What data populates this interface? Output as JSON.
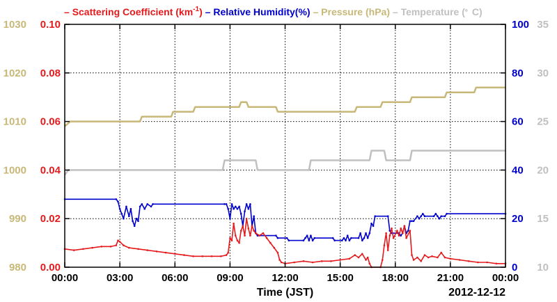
{
  "chart_data": {
    "type": "line",
    "legend": [
      {
        "key": "scattering",
        "label": "Scattering Coefficient (km",
        "sup": "-1",
        "suffix": ")",
        "color": "#e41a1c"
      },
      {
        "key": "humidity",
        "label": "Relative Humidity(%)",
        "color": "#0000cc"
      },
      {
        "key": "pressure",
        "label": "Pressure (hPa)",
        "color": "#c8b878"
      },
      {
        "key": "temperature",
        "label": "Temperature (",
        "sup": "。",
        "suffix": "C)",
        "color": "#c0c0c0"
      }
    ],
    "xlabel": "Time (JST)",
    "date": "2012-12-12",
    "x_ticks": [
      "00:00",
      "03:00",
      "06:00",
      "09:00",
      "12:00",
      "15:00",
      "18:00",
      "21:00",
      "00:00"
    ],
    "x_range_hours": [
      0,
      24
    ],
    "grid": true,
    "axes": {
      "pressure": {
        "side": "left-outer",
        "range": [
          980,
          1030
        ],
        "ticks": [
          "980",
          "990",
          "1000",
          "1010",
          "1020",
          "1030"
        ],
        "color": "#c8b878"
      },
      "scattering": {
        "side": "left-inner",
        "range": [
          0,
          0.1
        ],
        "ticks": [
          "0.00",
          "0.02",
          "0.04",
          "0.06",
          "0.08",
          "0.10"
        ],
        "color": "#e41a1c"
      },
      "humidity": {
        "side": "right-inner",
        "range": [
          0,
          100
        ],
        "ticks": [
          "0",
          "20",
          "40",
          "60",
          "80",
          "100"
        ],
        "color": "#0000cc"
      },
      "temperature": {
        "side": "right-outer",
        "range": [
          10,
          35
        ],
        "ticks": [
          "10",
          "15",
          "20",
          "25",
          "30",
          "35"
        ],
        "color": "#c0c0c0"
      }
    },
    "series": {
      "pressure": [
        [
          0,
          1009
        ],
        [
          0.3,
          1010
        ],
        [
          1.2,
          1010
        ],
        [
          4.1,
          1010
        ],
        [
          4.2,
          1011
        ],
        [
          5.8,
          1011
        ],
        [
          5.9,
          1012
        ],
        [
          7,
          1012
        ],
        [
          7.1,
          1013
        ],
        [
          9.5,
          1013
        ],
        [
          9.6,
          1014
        ],
        [
          9.9,
          1014
        ],
        [
          10,
          1013
        ],
        [
          11.5,
          1013
        ],
        [
          11.6,
          1012
        ],
        [
          15.8,
          1012
        ],
        [
          15.9,
          1013
        ],
        [
          17.2,
          1013
        ],
        [
          17.3,
          1014
        ],
        [
          18.8,
          1014
        ],
        [
          18.9,
          1015
        ],
        [
          20.7,
          1015
        ],
        [
          20.8,
          1016
        ],
        [
          22.3,
          1016
        ],
        [
          22.4,
          1017
        ],
        [
          24,
          1017
        ]
      ],
      "temperature": [
        [
          0,
          19.5
        ],
        [
          0.2,
          20
        ],
        [
          8.6,
          20
        ],
        [
          8.7,
          21
        ],
        [
          10.4,
          21
        ],
        [
          10.5,
          20
        ],
        [
          13.3,
          20
        ],
        [
          13.4,
          21
        ],
        [
          16.6,
          21
        ],
        [
          16.7,
          22
        ],
        [
          17.4,
          22
        ],
        [
          17.5,
          21
        ],
        [
          18.8,
          21
        ],
        [
          18.9,
          22
        ],
        [
          24,
          22
        ]
      ],
      "humidity": [
        [
          0,
          28
        ],
        [
          2.8,
          28
        ],
        [
          2.9,
          27
        ],
        [
          3,
          24
        ],
        [
          3.1,
          22
        ],
        [
          3.2,
          20
        ],
        [
          3.35,
          25
        ],
        [
          3.5,
          21
        ],
        [
          3.6,
          24
        ],
        [
          3.7,
          19
        ],
        [
          3.8,
          17
        ],
        [
          3.9,
          20
        ],
        [
          4,
          19
        ],
        [
          4.1,
          25
        ],
        [
          4.2,
          26
        ],
        [
          4.35,
          24
        ],
        [
          4.5,
          26
        ],
        [
          4.7,
          25
        ],
        [
          4.8,
          26
        ],
        [
          8.7,
          26
        ],
        [
          8.8,
          26
        ],
        [
          8.9,
          24
        ],
        [
          9,
          20
        ],
        [
          9.1,
          26
        ],
        [
          9.2,
          24
        ],
        [
          9.3,
          25
        ],
        [
          9.4,
          24
        ],
        [
          9.5,
          25
        ],
        [
          9.6,
          22
        ],
        [
          9.7,
          17
        ],
        [
          9.8,
          23
        ],
        [
          9.9,
          26
        ],
        [
          10,
          24
        ],
        [
          10.1,
          26
        ],
        [
          10.2,
          17
        ],
        [
          10.3,
          21
        ],
        [
          10.4,
          14
        ],
        [
          10.5,
          13
        ],
        [
          11.5,
          13
        ],
        [
          11.6,
          12
        ],
        [
          12.1,
          12
        ],
        [
          12.2,
          11
        ],
        [
          13,
          11
        ],
        [
          13.1,
          12
        ],
        [
          13.2,
          13
        ],
        [
          13.3,
          11
        ],
        [
          13.4,
          13
        ],
        [
          13.5,
          11
        ],
        [
          13.6,
          12
        ],
        [
          14.6,
          12
        ],
        [
          14.7,
          11
        ],
        [
          15.1,
          11
        ],
        [
          15.2,
          12
        ],
        [
          15.3,
          11
        ],
        [
          15.4,
          13
        ],
        [
          15.5,
          11
        ],
        [
          15.6,
          12
        ],
        [
          16,
          12
        ],
        [
          16.1,
          14
        ],
        [
          16.2,
          11
        ],
        [
          16.3,
          12
        ],
        [
          16.4,
          14
        ],
        [
          16.5,
          12
        ],
        [
          16.6,
          14
        ],
        [
          16.7,
          18
        ],
        [
          16.8,
          17
        ],
        [
          16.9,
          21
        ],
        [
          17.6,
          21
        ],
        [
          17.7,
          15
        ],
        [
          17.8,
          14
        ],
        [
          18.2,
          14
        ],
        [
          18.3,
          13
        ],
        [
          18.4,
          14
        ],
        [
          18.5,
          17
        ],
        [
          18.6,
          14
        ],
        [
          18.7,
          15
        ],
        [
          18.8,
          19
        ],
        [
          18.9,
          19
        ],
        [
          19,
          19
        ],
        [
          19.2,
          21
        ],
        [
          19.3,
          20
        ],
        [
          19.4,
          21
        ],
        [
          19.5,
          22
        ],
        [
          19.6,
          21
        ],
        [
          20.1,
          21
        ],
        [
          20.2,
          22
        ],
        [
          20.3,
          21
        ],
        [
          20.4,
          20
        ],
        [
          20.5,
          21
        ],
        [
          20.7,
          21
        ],
        [
          20.8,
          22
        ],
        [
          24,
          22
        ]
      ],
      "scattering": [
        [
          0,
          0.0075
        ],
        [
          0.5,
          0.007
        ],
        [
          1,
          0.0075
        ],
        [
          1.5,
          0.008
        ],
        [
          2,
          0.0085
        ],
        [
          2.5,
          0.0085
        ],
        [
          2.8,
          0.009
        ],
        [
          2.9,
          0.011
        ],
        [
          3,
          0.0105
        ],
        [
          3.2,
          0.009
        ],
        [
          3.5,
          0.008
        ],
        [
          4,
          0.0075
        ],
        [
          4.5,
          0.007
        ],
        [
          5,
          0.0065
        ],
        [
          5.5,
          0.006
        ],
        [
          6,
          0.0055
        ],
        [
          6.5,
          0.005
        ],
        [
          7,
          0.0045
        ],
        [
          7.5,
          0.0045
        ],
        [
          8,
          0.0045
        ],
        [
          8.5,
          0.0045
        ],
        [
          8.8,
          0.005
        ],
        [
          8.9,
          0.006
        ],
        [
          9,
          0.012
        ],
        [
          9.1,
          0.011
        ],
        [
          9.2,
          0.018
        ],
        [
          9.3,
          0.013
        ],
        [
          9.4,
          0.011
        ],
        [
          9.5,
          0.01
        ],
        [
          9.6,
          0.015
        ],
        [
          9.7,
          0.017
        ],
        [
          9.8,
          0.013
        ],
        [
          9.9,
          0.02
        ],
        [
          10,
          0.016
        ],
        [
          10.1,
          0.013
        ],
        [
          10.2,
          0.017
        ],
        [
          10.3,
          0.015
        ],
        [
          10.4,
          0.014
        ],
        [
          10.6,
          0.013
        ],
        [
          10.8,
          0.014
        ],
        [
          11,
          0.012
        ],
        [
          11.2,
          0.01
        ],
        [
          11.4,
          0.008
        ],
        [
          11.6,
          0.006
        ],
        [
          11.7,
          0.003
        ],
        [
          11.8,
          0.002
        ],
        [
          12,
          0.0015
        ],
        [
          12.5,
          0.002
        ],
        [
          13,
          0.0025
        ],
        [
          13.5,
          0.002
        ],
        [
          14,
          0.0025
        ],
        [
          14.5,
          0.0025
        ],
        [
          15,
          0.003
        ],
        [
          15.5,
          0.0035
        ],
        [
          15.8,
          0.005
        ],
        [
          16,
          0.004
        ],
        [
          16.2,
          0.0055
        ],
        [
          16.4,
          0.003
        ],
        [
          16.5,
          0.004
        ],
        [
          16.6,
          0.0015
        ],
        [
          16.7,
          0.0
        ],
        [
          17.2,
          0.0
        ],
        [
          17.3,
          0.003
        ],
        [
          17.4,
          0.009
        ],
        [
          17.5,
          0.014
        ],
        [
          17.6,
          0.007
        ],
        [
          17.7,
          0.013
        ],
        [
          17.8,
          0.016
        ],
        [
          17.9,
          0.012
        ],
        [
          18.1,
          0.015
        ],
        [
          18.2,
          0.013
        ],
        [
          18.3,
          0.016
        ],
        [
          18.4,
          0.014
        ],
        [
          18.5,
          0.017
        ],
        [
          18.6,
          0.012
        ],
        [
          18.8,
          0.015
        ],
        [
          18.9,
          0.005
        ],
        [
          19,
          0.003
        ],
        [
          19.2,
          0.004
        ],
        [
          19.4,
          0.0025
        ],
        [
          19.6,
          0.005
        ],
        [
          19.8,
          0.004
        ],
        [
          20,
          0.0045
        ],
        [
          20.3,
          0.004
        ],
        [
          20.5,
          0.006
        ],
        [
          20.7,
          0.004
        ],
        [
          21,
          0.0035
        ],
        [
          21.5,
          0.003
        ],
        [
          22,
          0.0025
        ],
        [
          22.5,
          0.002
        ],
        [
          23,
          0.002
        ],
        [
          23.5,
          0.0015
        ],
        [
          24,
          0.0015
        ]
      ]
    }
  }
}
